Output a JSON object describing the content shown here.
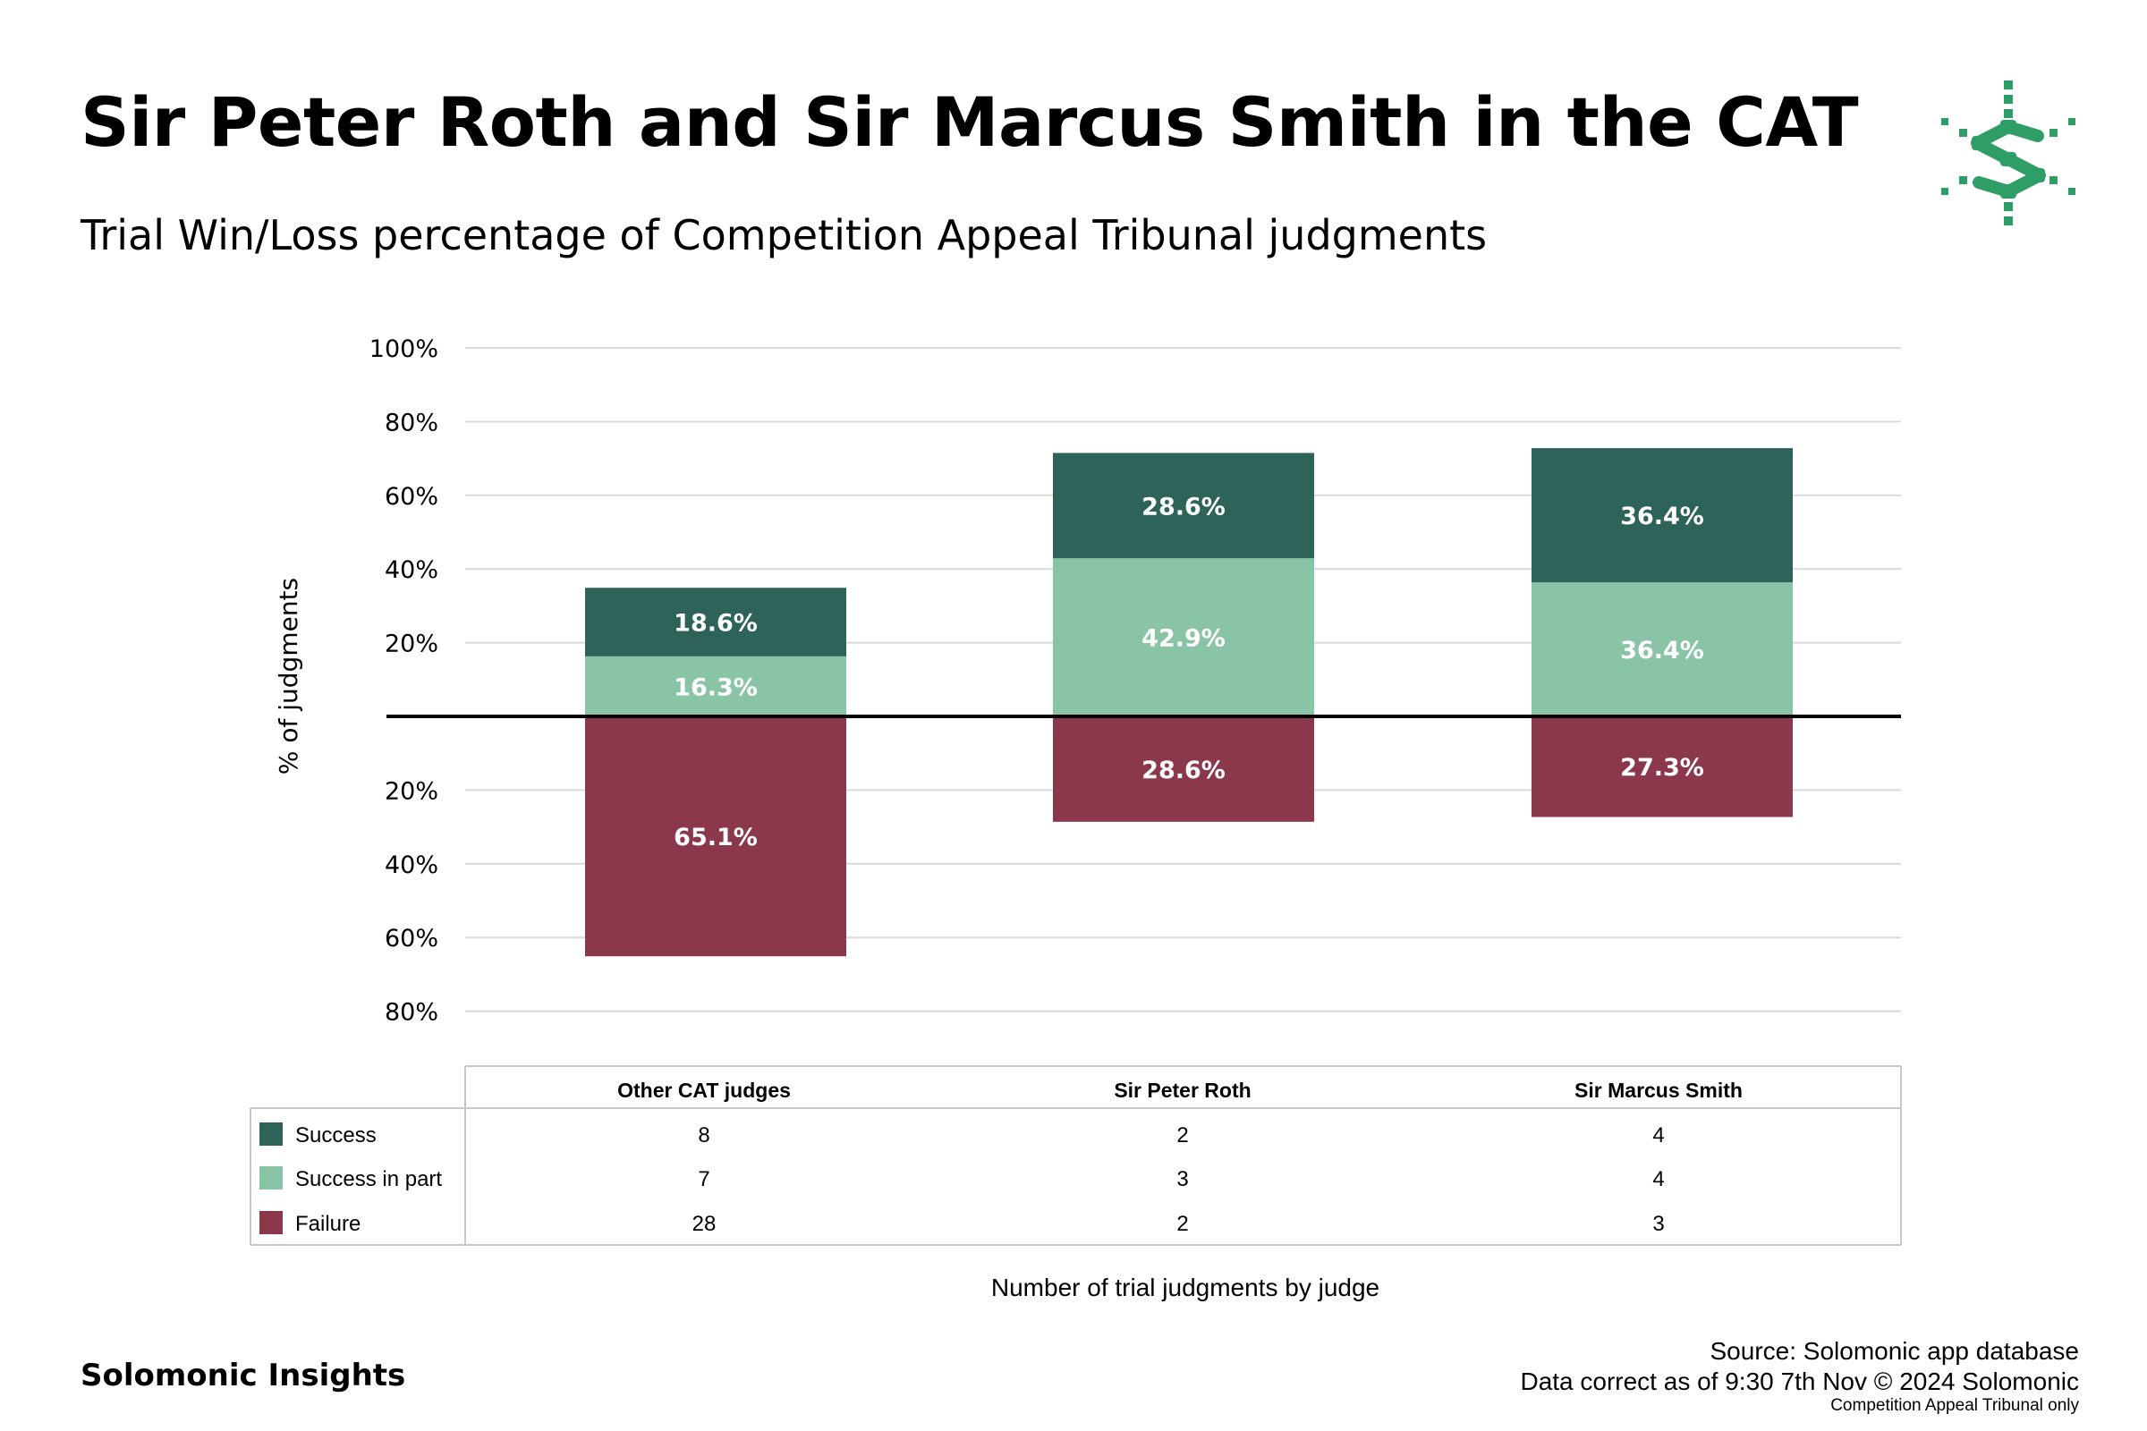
{
  "header": {
    "title": "Sir Peter Roth and Sir Marcus Smith in the CAT",
    "subtitle": "Trial Win/Loss percentage of Competition Appeal Tribunal judgments",
    "logo_icon": "solomonic-logo-icon"
  },
  "colors": {
    "success": "#2e6359",
    "success_in_part": "#8ac4a6",
    "failure": "#8b374c",
    "grid": "#d9d9d9",
    "logo": "#2e9e66"
  },
  "chart_data": {
    "type": "bar",
    "stacked": true,
    "diverging": true,
    "title": "Trial Win/Loss percentage of Competition Appeal Tribunal judgments",
    "ylabel": "% of judgments",
    "xlabel": "Number of trial judgments by judge",
    "categories": [
      "Other CAT judges",
      "Sir Peter Roth",
      "Sir Marcus Smith"
    ],
    "ylim": [
      -90,
      100
    ],
    "yticks": [
      100,
      80,
      60,
      40,
      20,
      -20,
      -40,
      -60,
      -80
    ],
    "ytick_labels": [
      "100%",
      "80%",
      "60%",
      "40%",
      "20%",
      "20%",
      "40%",
      "60%",
      "80%"
    ],
    "series": [
      {
        "name": "Success in part",
        "key": "success_in_part",
        "direction": "up",
        "values": [
          16.3,
          42.9,
          36.4
        ],
        "labels": [
          "16.3%",
          "42.9%",
          "36.4%"
        ]
      },
      {
        "name": "Success",
        "key": "success",
        "direction": "up",
        "values": [
          18.6,
          28.6,
          36.4
        ],
        "labels": [
          "18.6%",
          "28.6%",
          "36.4%"
        ]
      },
      {
        "name": "Failure",
        "key": "failure",
        "direction": "down",
        "values": [
          65.1,
          28.6,
          27.3
        ],
        "labels": [
          "65.1%",
          "28.6%",
          "27.3%"
        ]
      }
    ],
    "table": {
      "rows": [
        {
          "name": "Success",
          "key": "success",
          "counts": [
            "8",
            "2",
            "4"
          ]
        },
        {
          "name": "Success in part",
          "key": "success_in_part",
          "counts": [
            "7",
            "3",
            "4"
          ]
        },
        {
          "name": "Failure",
          "key": "failure",
          "counts": [
            "28",
            "2",
            "3"
          ]
        }
      ]
    }
  },
  "footer": {
    "brand": "Solomonic Insights",
    "source_line1": "Source: Solomonic app database",
    "source_line2": "Data correct as of 9:30 7th Nov © 2024 Solomonic",
    "source_line3": "Competition Appeal Tribunal only"
  }
}
